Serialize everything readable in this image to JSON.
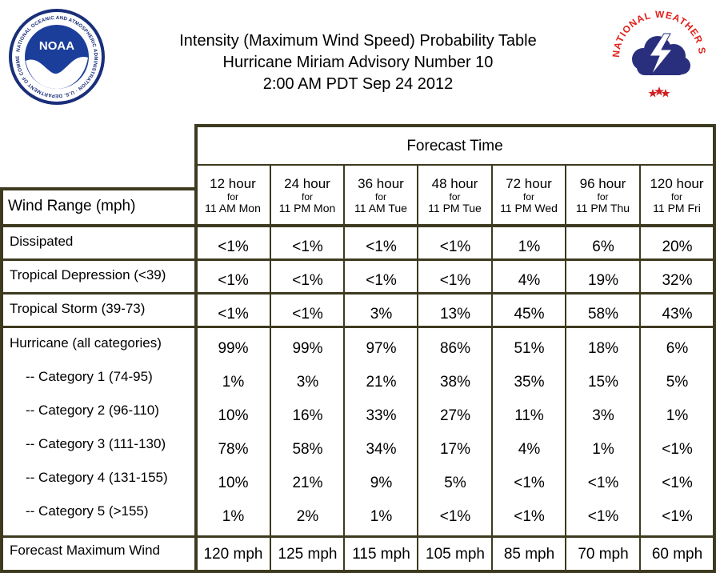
{
  "header": {
    "title_lines": [
      "Intensity (Maximum Wind Speed) Probability Table",
      "Hurricane Miriam Advisory Number 10",
      "2:00 AM PDT Sep 24 2012"
    ],
    "noaa_logo": {
      "wordmark": "NOAA",
      "ring_text": "NATIONAL OCEANIC AND ATMOSPHERIC ADMINISTRATION · U.S. DEPARTMENT OF COMMERCE",
      "colors": {
        "outer": "#1a2f7a",
        "ring": "#ffffff",
        "sky": "#1c3e9b",
        "gull": "#ffffff"
      }
    },
    "nws_logo": {
      "ring_text": "NATIONAL WEATHER SERVICE",
      "colors": {
        "text": "#e2201c",
        "cloud": "#2a2f7d",
        "stars": "#d21f1f"
      }
    }
  },
  "table": {
    "forecast_time_label": "Forecast Time",
    "wind_range_label": "Wind Range (mph)",
    "columns": [
      {
        "hours": "12 hour",
        "for": "for",
        "time": "11 AM Mon"
      },
      {
        "hours": "24 hour",
        "for": "for",
        "time": "11 PM Mon"
      },
      {
        "hours": "36 hour",
        "for": "for",
        "time": "11 AM Tue"
      },
      {
        "hours": "48 hour",
        "for": "for",
        "time": "11 PM Tue"
      },
      {
        "hours": "72 hour",
        "for": "for",
        "time": "11 PM Wed"
      },
      {
        "hours": "96 hour",
        "for": "for",
        "time": "11 PM Thu"
      },
      {
        "hours": "120 hour",
        "for": "for",
        "time": "11 PM Fri"
      }
    ],
    "rows": [
      {
        "label": "Dissipated",
        "values": [
          "<1%",
          "<1%",
          "<1%",
          "<1%",
          "1%",
          "6%",
          "20%"
        ]
      },
      {
        "label": "Tropical Depression (<39)",
        "values": [
          "<1%",
          "<1%",
          "<1%",
          "<1%",
          "4%",
          "19%",
          "32%"
        ]
      },
      {
        "label": "Tropical Storm (39-73)",
        "values": [
          "<1%",
          "<1%",
          "3%",
          "13%",
          "45%",
          "58%",
          "43%"
        ]
      },
      {
        "label": "Hurricane (all categories)",
        "values": [
          "99%",
          "99%",
          "97%",
          "86%",
          "51%",
          "18%",
          "6%"
        ]
      },
      {
        "label": "-- Category 1 (74-95)",
        "values": [
          "1%",
          "3%",
          "21%",
          "38%",
          "35%",
          "15%",
          "5%"
        ]
      },
      {
        "label": "-- Category 2 (96-110)",
        "values": [
          "10%",
          "16%",
          "33%",
          "27%",
          "11%",
          "3%",
          "1%"
        ]
      },
      {
        "label": "-- Category 3 (111-130)",
        "values": [
          "78%",
          "58%",
          "34%",
          "17%",
          "4%",
          "1%",
          "<1%"
        ]
      },
      {
        "label": "-- Category 4 (131-155)",
        "values": [
          "10%",
          "21%",
          "9%",
          "5%",
          "<1%",
          "<1%",
          "<1%"
        ]
      },
      {
        "label": "-- Category 5 (>155)",
        "values": [
          "1%",
          "2%",
          "1%",
          "<1%",
          "<1%",
          "<1%",
          "<1%"
        ]
      },
      {
        "label": "Forecast Maximum Wind",
        "values": [
          "120 mph",
          "125 mph",
          "115 mph",
          "105 mph",
          "85 mph",
          "70 mph",
          "60 mph"
        ]
      }
    ],
    "border_color": "#3d3a1f"
  }
}
